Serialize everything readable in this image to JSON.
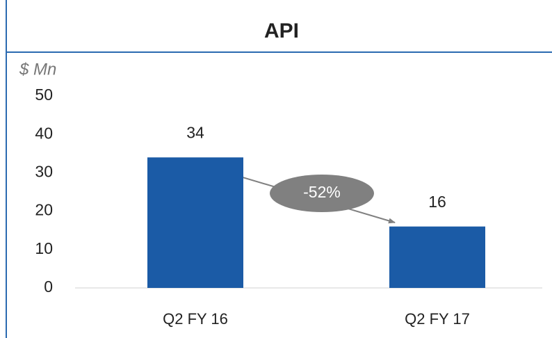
{
  "chart_data": {
    "type": "bar",
    "title": "API",
    "ylabel": "$ Mn",
    "categories": [
      "Q2 FY 16",
      "Q2 FY 17"
    ],
    "values": [
      34,
      16
    ],
    "color": "#1b5ba6",
    "ylim": [
      0,
      50
    ],
    "yticks": [
      0,
      10,
      20,
      30,
      40,
      50
    ],
    "grid": false,
    "annotation": "-52%"
  }
}
